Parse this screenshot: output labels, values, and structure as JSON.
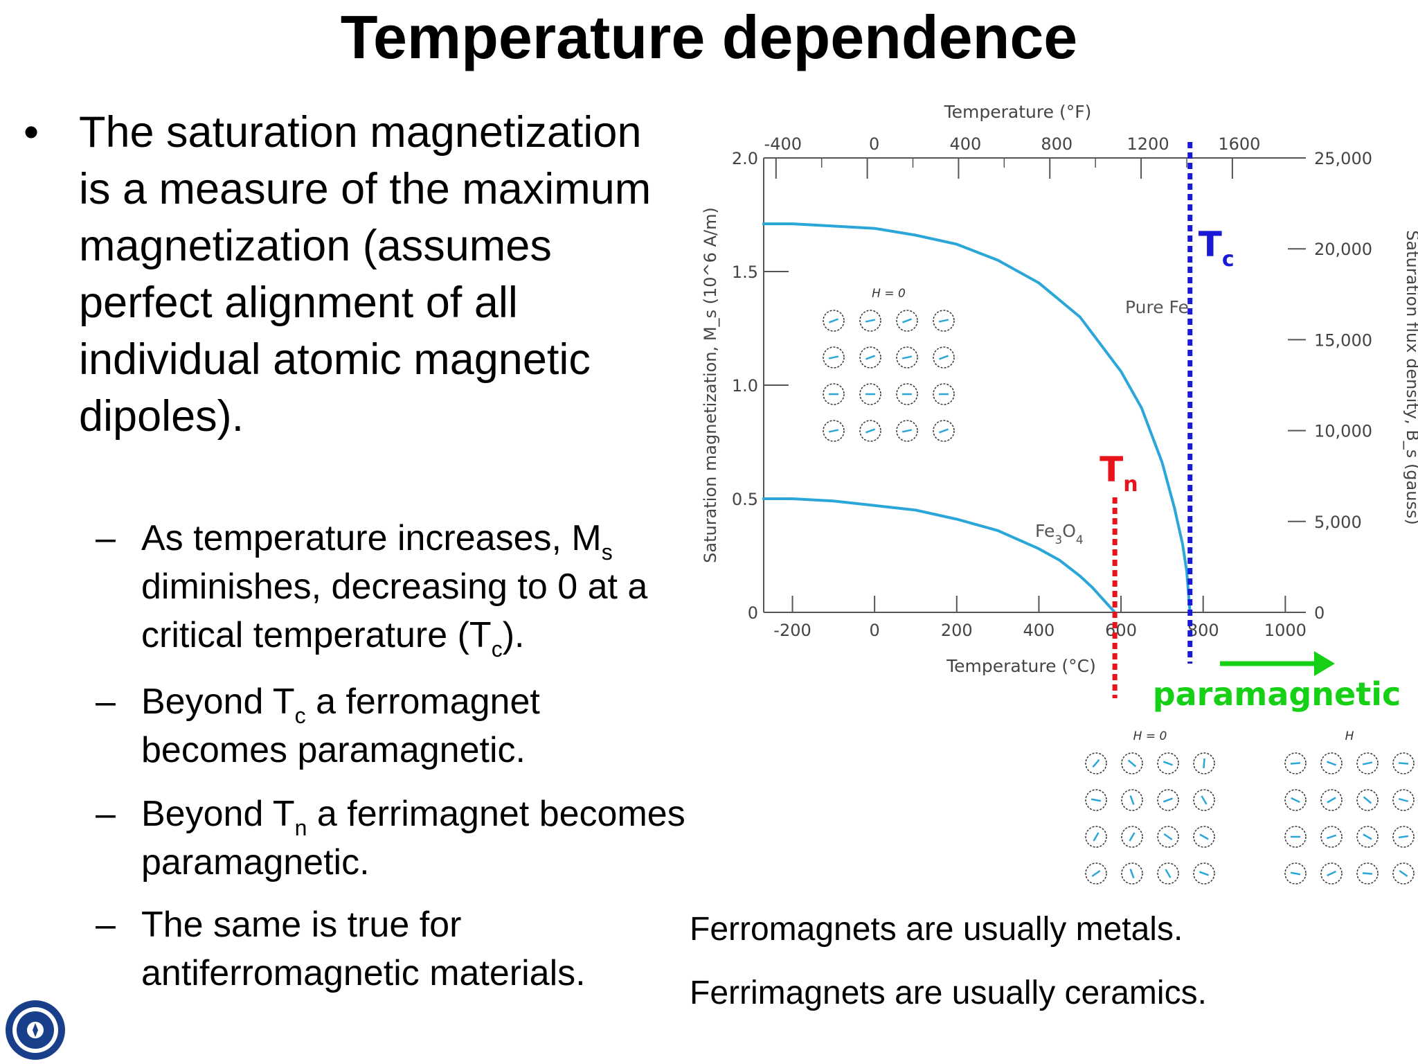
{
  "slide": {
    "title": "Temperature dependence",
    "main_bullet": "The saturation magnetization is a measure of the maximum magnetization (assumes perfect alignment of all individual atomic magnetic dipoles).",
    "sub_bullets": {
      "b1_pre": "As temperature increases, M",
      "b1_sub1": "s",
      "b1_mid": " diminishes, decreasing to 0 at a critical temperature (T",
      "b1_sub2": "c",
      "b1_post": ").",
      "b2_pre": "Beyond T",
      "b2_sub": "c",
      "b2_post": " a ferromagnet becomes paramagnetic.",
      "b3_pre": "Beyond T",
      "b3_sub": "n",
      "b3_post": " a ferrimagnet becomes paramagnetic.",
      "b4": "The same is true for antiferromagnetic materials."
    },
    "notes": [
      "Ferromagnets are usually metals.",
      "Ferrimagnets are usually ceramics."
    ],
    "colors": {
      "curve": "#2aa6d8",
      "tc_line": "#1a1ad6",
      "tn_line": "#e8141c",
      "paramagnetic": "#16d016"
    }
  },
  "chart_data": {
    "type": "line",
    "title": "",
    "xlabel": "Temperature (°C)",
    "x2label": "Temperature (°F)",
    "ylabel": "Saturation magnetization, M_s (10^6 A/m)",
    "y2label": "Saturation flux density, B_s (gauss)",
    "xlim": [
      -270,
      1050
    ],
    "ylim": [
      0,
      2.0
    ],
    "x_ticks": [
      "-200",
      "0",
      "200",
      "400",
      "600",
      "800",
      "1000"
    ],
    "x2_ticks": [
      "-400",
      "0",
      "400",
      "800",
      "1200",
      "1600"
    ],
    "y_ticks": [
      "0",
      "0.5",
      "1.0",
      "1.5",
      "2.0"
    ],
    "y2_ticks": [
      "0",
      "5,000",
      "10,000",
      "15,000",
      "20,000",
      "25,000"
    ],
    "series": [
      {
        "name": "Pure Fe",
        "x": [
          -273,
          -200,
          -100,
          0,
          100,
          200,
          300,
          400,
          500,
          600,
          650,
          700,
          730,
          750,
          760,
          768
        ],
        "y": [
          1.71,
          1.71,
          1.7,
          1.69,
          1.66,
          1.62,
          1.55,
          1.45,
          1.3,
          1.06,
          0.9,
          0.66,
          0.46,
          0.3,
          0.18,
          0.0
        ]
      },
      {
        "name": "Fe3O4",
        "x": [
          -273,
          -200,
          -100,
          0,
          100,
          200,
          300,
          400,
          450,
          500,
          530,
          560,
          575,
          585
        ],
        "y": [
          0.5,
          0.5,
          0.49,
          0.47,
          0.45,
          0.41,
          0.36,
          0.28,
          0.23,
          0.16,
          0.11,
          0.05,
          0.02,
          0.0
        ]
      }
    ],
    "markers": [
      {
        "label": "T",
        "sub": "c",
        "x": 768,
        "color": "#1a1ad6"
      },
      {
        "label": "T",
        "sub": "n",
        "x": 585,
        "color": "#e8141c"
      }
    ],
    "annotation": "paramagnetic",
    "inset_labels": [
      "H = 0",
      "H = 0",
      "H"
    ]
  }
}
